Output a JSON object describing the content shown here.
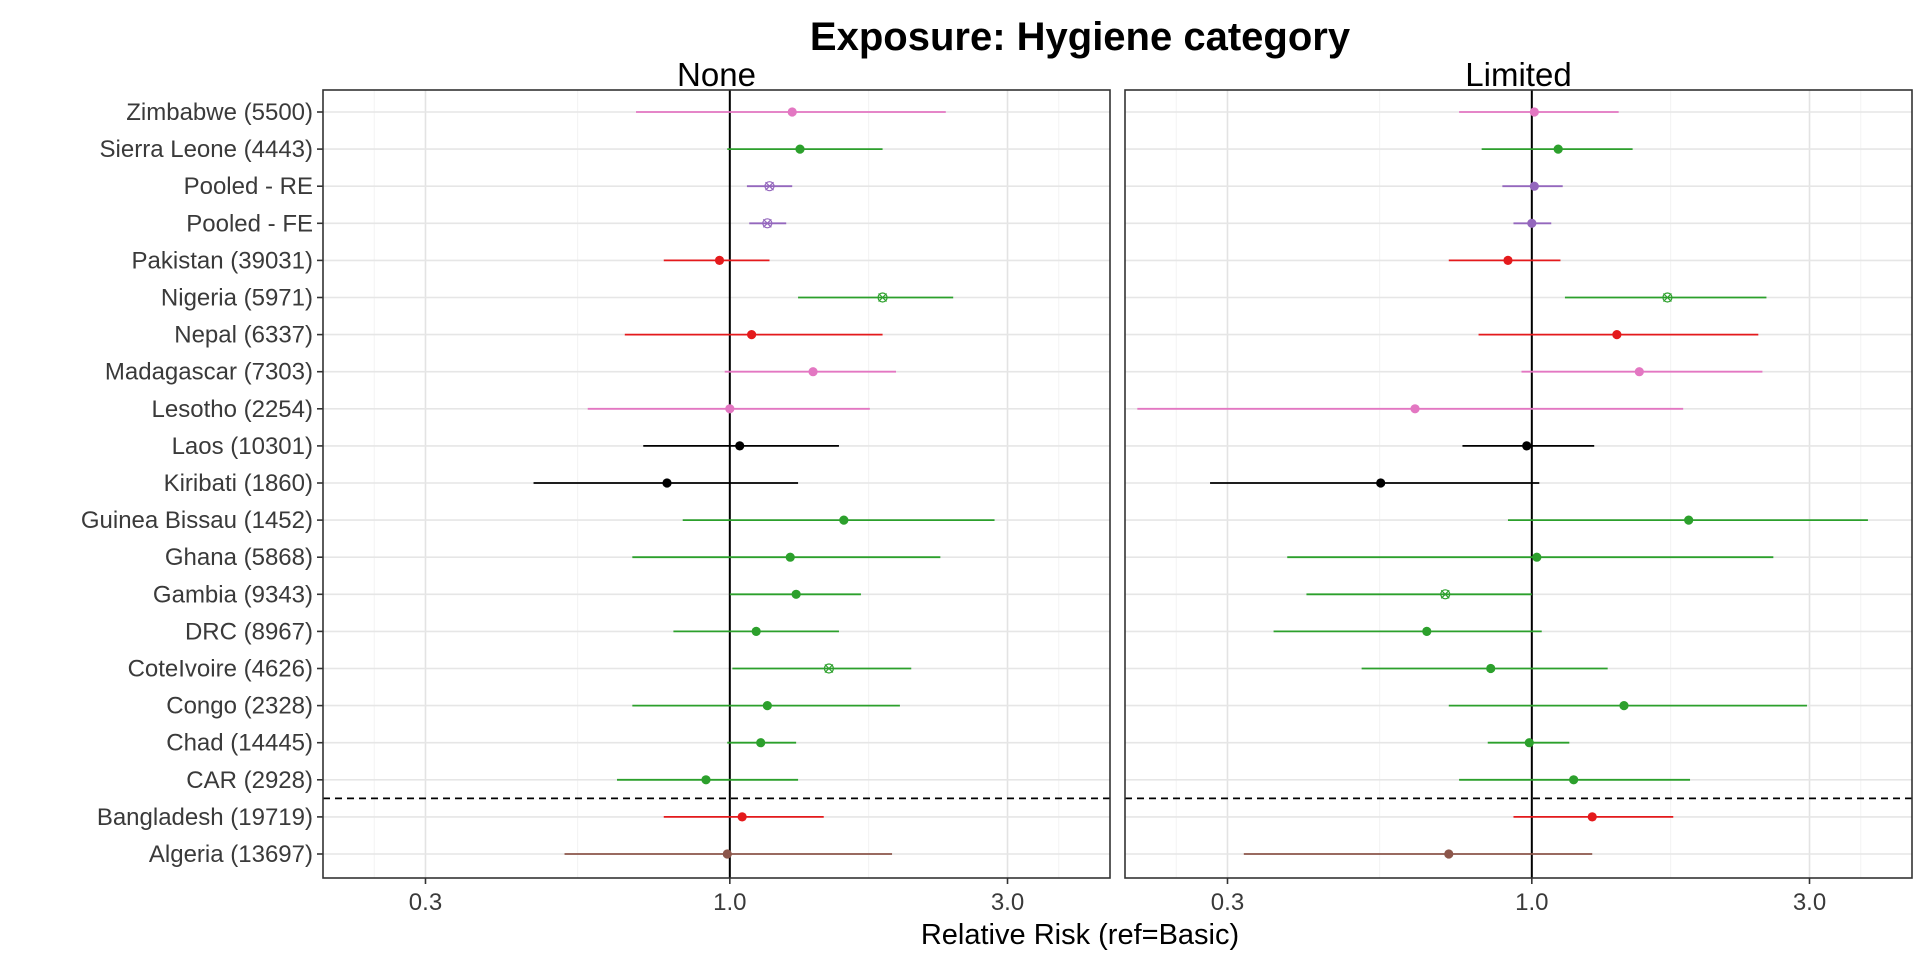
{
  "chart_data": {
    "type": "forest",
    "title": "Exposure: Hygiene category",
    "xlabel": "Relative Risk (ref=Basic)",
    "x_scale": "log",
    "xlim": [
      0.2,
      4.5
    ],
    "x_ticks": [
      {
        "value": 0.3,
        "label": "0.3"
      },
      {
        "value": 1.0,
        "label": "1.0"
      },
      {
        "value": 3.0,
        "label": "3.0"
      }
    ],
    "reference_line": 1.0,
    "grid": true,
    "rows": [
      "Zimbabwe (5500)",
      "Sierra Leone (4443)",
      "Pooled - RE",
      "Pooled - FE",
      "Pakistan (39031)",
      "Nigeria (5971)",
      "Nepal (6337)",
      "Madagascar (7303)",
      "Lesotho (2254)",
      "Laos (10301)",
      "Kiribati (1860)",
      "Guinea Bissau (1452)",
      "Ghana (5868)",
      "Gambia (9343)",
      "DRC (8967)",
      "CoteIvoire (4626)",
      "Congo (2328)",
      "Chad (14445)",
      "CAR (2928)",
      "Bangladesh (19719)",
      "Algeria (13697)"
    ],
    "separator_after_row": 18,
    "colors": {
      "Zimbabwe (5500)": "#e377c2",
      "Sierra Leone (4443)": "#2ca02c",
      "Pooled - RE": "#9467bd",
      "Pooled - FE": "#9467bd",
      "Pakistan (39031)": "#e41a1c",
      "Nigeria (5971)": "#2ca02c",
      "Nepal (6337)": "#e41a1c",
      "Madagascar (7303)": "#e377c2",
      "Lesotho (2254)": "#e377c2",
      "Laos (10301)": "#000000",
      "Kiribati (1860)": "#000000",
      "Guinea Bissau (1452)": "#2ca02c",
      "Ghana (5868)": "#2ca02c",
      "Gambia (9343)": "#2ca02c",
      "DRC (8967)": "#2ca02c",
      "CoteIvoire (4626)": "#2ca02c",
      "Congo (2328)": "#2ca02c",
      "Chad (14445)": "#2ca02c",
      "CAR (2928)": "#2ca02c",
      "Bangladesh (19719)": "#e41a1c",
      "Algeria (13697)": "#8c564b"
    },
    "panels": [
      {
        "label": "None",
        "estimates": [
          {
            "row": "Zimbabwe (5500)",
            "rr": 1.28,
            "lo": 0.69,
            "hi": 2.35,
            "marker": "dot"
          },
          {
            "row": "Sierra Leone (4443)",
            "rr": 1.32,
            "lo": 0.99,
            "hi": 1.83,
            "marker": "dot"
          },
          {
            "row": "Pooled - RE",
            "rr": 1.17,
            "lo": 1.07,
            "hi": 1.28,
            "marker": "x"
          },
          {
            "row": "Pooled - FE",
            "rr": 1.16,
            "lo": 1.08,
            "hi": 1.25,
            "marker": "x"
          },
          {
            "row": "Pakistan (39031)",
            "rr": 0.96,
            "lo": 0.77,
            "hi": 1.17,
            "marker": "dot"
          },
          {
            "row": "Nigeria (5971)",
            "rr": 1.83,
            "lo": 1.31,
            "hi": 2.42,
            "marker": "x"
          },
          {
            "row": "Nepal (6337)",
            "rr": 1.09,
            "lo": 0.66,
            "hi": 1.83,
            "marker": "dot"
          },
          {
            "row": "Madagascar (7303)",
            "rr": 1.39,
            "lo": 0.98,
            "hi": 1.93,
            "marker": "dot"
          },
          {
            "row": "Lesotho (2254)",
            "rr": 1.0,
            "lo": 0.57,
            "hi": 1.74,
            "marker": "dot"
          },
          {
            "row": "Laos (10301)",
            "rr": 1.04,
            "lo": 0.71,
            "hi": 1.54,
            "marker": "dot"
          },
          {
            "row": "Kiribati (1860)",
            "rr": 0.78,
            "lo": 0.46,
            "hi": 1.31,
            "marker": "dot"
          },
          {
            "row": "Guinea Bissau (1452)",
            "rr": 1.57,
            "lo": 0.83,
            "hi": 2.85,
            "marker": "dot"
          },
          {
            "row": "Ghana (5868)",
            "rr": 1.27,
            "lo": 0.68,
            "hi": 2.3,
            "marker": "dot"
          },
          {
            "row": "Gambia (9343)",
            "rr": 1.3,
            "lo": 1.0,
            "hi": 1.68,
            "marker": "dot"
          },
          {
            "row": "DRC (8967)",
            "rr": 1.11,
            "lo": 0.8,
            "hi": 1.54,
            "marker": "dot"
          },
          {
            "row": "CoteIvoire (4626)",
            "rr": 1.48,
            "lo": 1.01,
            "hi": 2.05,
            "marker": "x"
          },
          {
            "row": "Congo (2328)",
            "rr": 1.16,
            "lo": 0.68,
            "hi": 1.96,
            "marker": "dot"
          },
          {
            "row": "Chad (14445)",
            "rr": 1.13,
            "lo": 0.99,
            "hi": 1.3,
            "marker": "dot"
          },
          {
            "row": "CAR (2928)",
            "rr": 0.91,
            "lo": 0.64,
            "hi": 1.31,
            "marker": "dot"
          },
          {
            "row": "Bangladesh (19719)",
            "rr": 1.05,
            "lo": 0.77,
            "hi": 1.45,
            "marker": "dot"
          },
          {
            "row": "Algeria (13697)",
            "rr": 0.99,
            "lo": 0.52,
            "hi": 1.9,
            "marker": "dot"
          }
        ]
      },
      {
        "label": "Limited",
        "estimates": [
          {
            "row": "Zimbabwe (5500)",
            "rr": 1.01,
            "lo": 0.75,
            "hi": 1.41,
            "marker": "dot"
          },
          {
            "row": "Sierra Leone (4443)",
            "rr": 1.11,
            "lo": 0.82,
            "hi": 1.49,
            "marker": "dot"
          },
          {
            "row": "Pooled - RE",
            "rr": 1.01,
            "lo": 0.89,
            "hi": 1.13,
            "marker": "dot"
          },
          {
            "row": "Pooled - FE",
            "rr": 1.0,
            "lo": 0.93,
            "hi": 1.08,
            "marker": "dot"
          },
          {
            "row": "Pakistan (39031)",
            "rr": 0.91,
            "lo": 0.72,
            "hi": 1.12,
            "marker": "dot"
          },
          {
            "row": "Nigeria (5971)",
            "rr": 1.71,
            "lo": 1.14,
            "hi": 2.53,
            "marker": "x"
          },
          {
            "row": "Nepal (6337)",
            "rr": 1.4,
            "lo": 0.81,
            "hi": 2.45,
            "marker": "dot"
          },
          {
            "row": "Madagascar (7303)",
            "rr": 1.53,
            "lo": 0.96,
            "hi": 2.49,
            "marker": "dot"
          },
          {
            "row": "Lesotho (2254)",
            "rr": 0.63,
            "lo": 0.21,
            "hi": 1.82,
            "marker": "dot"
          },
          {
            "row": "Laos (10301)",
            "rr": 0.98,
            "lo": 0.76,
            "hi": 1.28,
            "marker": "dot"
          },
          {
            "row": "Kiribati (1860)",
            "rr": 0.55,
            "lo": 0.28,
            "hi": 1.03,
            "marker": "dot"
          },
          {
            "row": "Guinea Bissau (1452)",
            "rr": 1.86,
            "lo": 0.91,
            "hi": 3.78,
            "marker": "dot"
          },
          {
            "row": "Ghana (5868)",
            "rr": 1.02,
            "lo": 0.38,
            "hi": 2.6,
            "marker": "dot"
          },
          {
            "row": "Gambia (9343)",
            "rr": 0.71,
            "lo": 0.41,
            "hi": 1.0,
            "marker": "x"
          },
          {
            "row": "DRC (8967)",
            "rr": 0.66,
            "lo": 0.36,
            "hi": 1.04,
            "marker": "dot"
          },
          {
            "row": "CoteIvoire (4626)",
            "rr": 0.85,
            "lo": 0.51,
            "hi": 1.35,
            "marker": "dot"
          },
          {
            "row": "Congo (2328)",
            "rr": 1.44,
            "lo": 0.72,
            "hi": 2.97,
            "marker": "dot"
          },
          {
            "row": "Chad (14445)",
            "rr": 0.99,
            "lo": 0.84,
            "hi": 1.16,
            "marker": "dot"
          },
          {
            "row": "CAR (2928)",
            "rr": 1.18,
            "lo": 0.75,
            "hi": 1.87,
            "marker": "dot"
          },
          {
            "row": "Bangladesh (19719)",
            "rr": 1.27,
            "lo": 0.93,
            "hi": 1.75,
            "marker": "dot"
          },
          {
            "row": "Algeria (13697)",
            "rr": 0.72,
            "lo": 0.32,
            "hi": 1.27,
            "marker": "dot"
          }
        ]
      }
    ]
  }
}
